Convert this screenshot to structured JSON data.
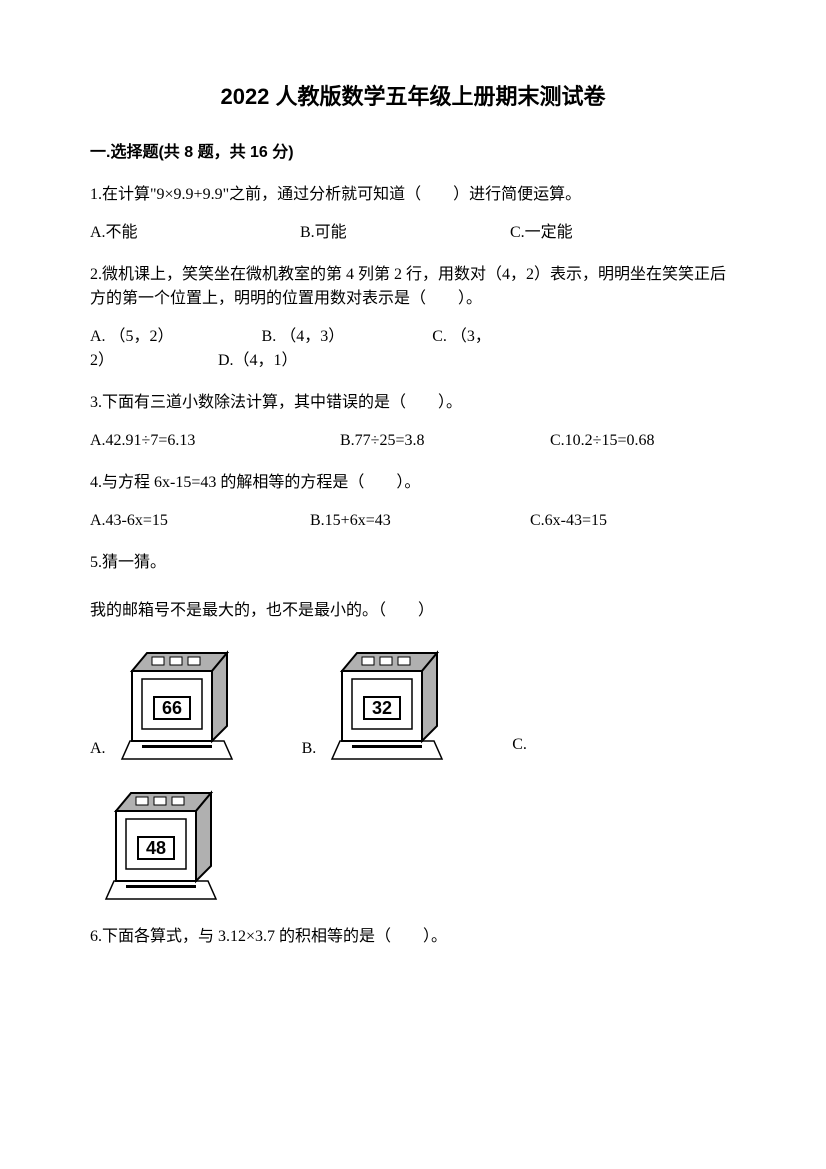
{
  "title": "2022 人教版数学五年级上册期末测试卷",
  "section": "一.选择题(共 8 题，共 16 分)",
  "q1": {
    "text": "1.在计算\"9×9.9+9.9\"之前，通过分析就可知道（　　）进行简便运算。",
    "a": "A.不能",
    "b": "B.可能",
    "c": "C.一定能"
  },
  "q2": {
    "text": "2.微机课上，笑笑坐在微机教室的第 4 列第 2 行，用数对（4，2）表示，明明坐在笑笑正后方的第一个位置上，明明的位置用数对表示是（　　）。",
    "line1": "A. （5，2）　　　　　　B. （4，3）　　　　　　C. （3，",
    "line2": "2）　　　　　　　D.（4，1）"
  },
  "q3": {
    "text": "3.下面有三道小数除法计算，其中错误的是（　　）。",
    "a": "A.42.91÷7=6.13",
    "b": "B.77÷25=3.8",
    "c": "C.10.2÷15=0.68"
  },
  "q4": {
    "text": "4.与方程 6x-15=43 的解相等的方程是（　　）。",
    "a": "A.43-6x=15",
    "b": "B.15+6x=43",
    "c": "C.6x-43=15"
  },
  "q5": {
    "text": "5.猜一猜。",
    "sub": "我的邮箱号不是最大的，也不是最小的。（　　）",
    "machines": [
      {
        "letter": "A.",
        "number": "66"
      },
      {
        "letter": "B.",
        "number": "32"
      },
      {
        "letter": "C.",
        "number": ""
      },
      {
        "letter": "",
        "number": "48"
      }
    ]
  },
  "q6": {
    "text": "6.下面各算式，与 3.12×3.7 的积相等的是（　　）。"
  },
  "machine_style": {
    "width": 130,
    "height": 120,
    "stroke": "#000000",
    "fill": "#ffffff",
    "gray_fill": "#b0b0b0",
    "number_fontsize": 18
  }
}
